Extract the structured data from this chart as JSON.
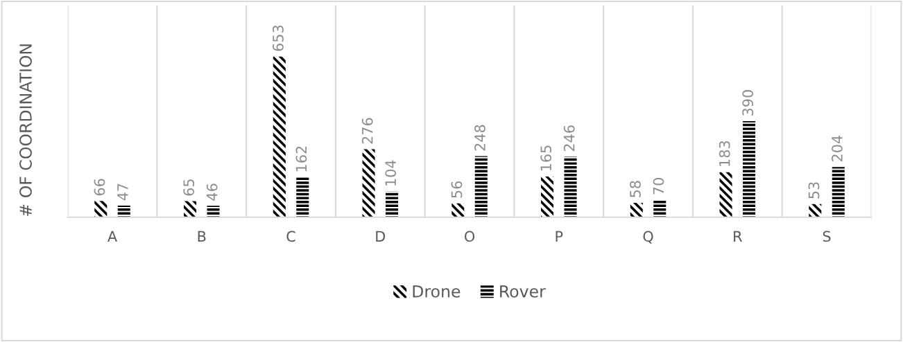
{
  "chart_data": {
    "type": "bar",
    "ylabel": "# OF COORDINATION",
    "categories": [
      "A",
      "B",
      "C",
      "D",
      "O",
      "P",
      "Q",
      "R",
      "S"
    ],
    "series": [
      {
        "name": "Drone",
        "color": "#000000",
        "values": [
          66,
          65,
          653,
          276,
          56,
          165,
          58,
          183,
          53
        ]
      },
      {
        "name": "Rover",
        "color": "#000000",
        "values": [
          47,
          46,
          162,
          104,
          248,
          246,
          70,
          390,
          204
        ]
      }
    ],
    "tick_labels": "x",
    "data_labels": true,
    "grid": "x",
    "legend": "bottom"
  }
}
